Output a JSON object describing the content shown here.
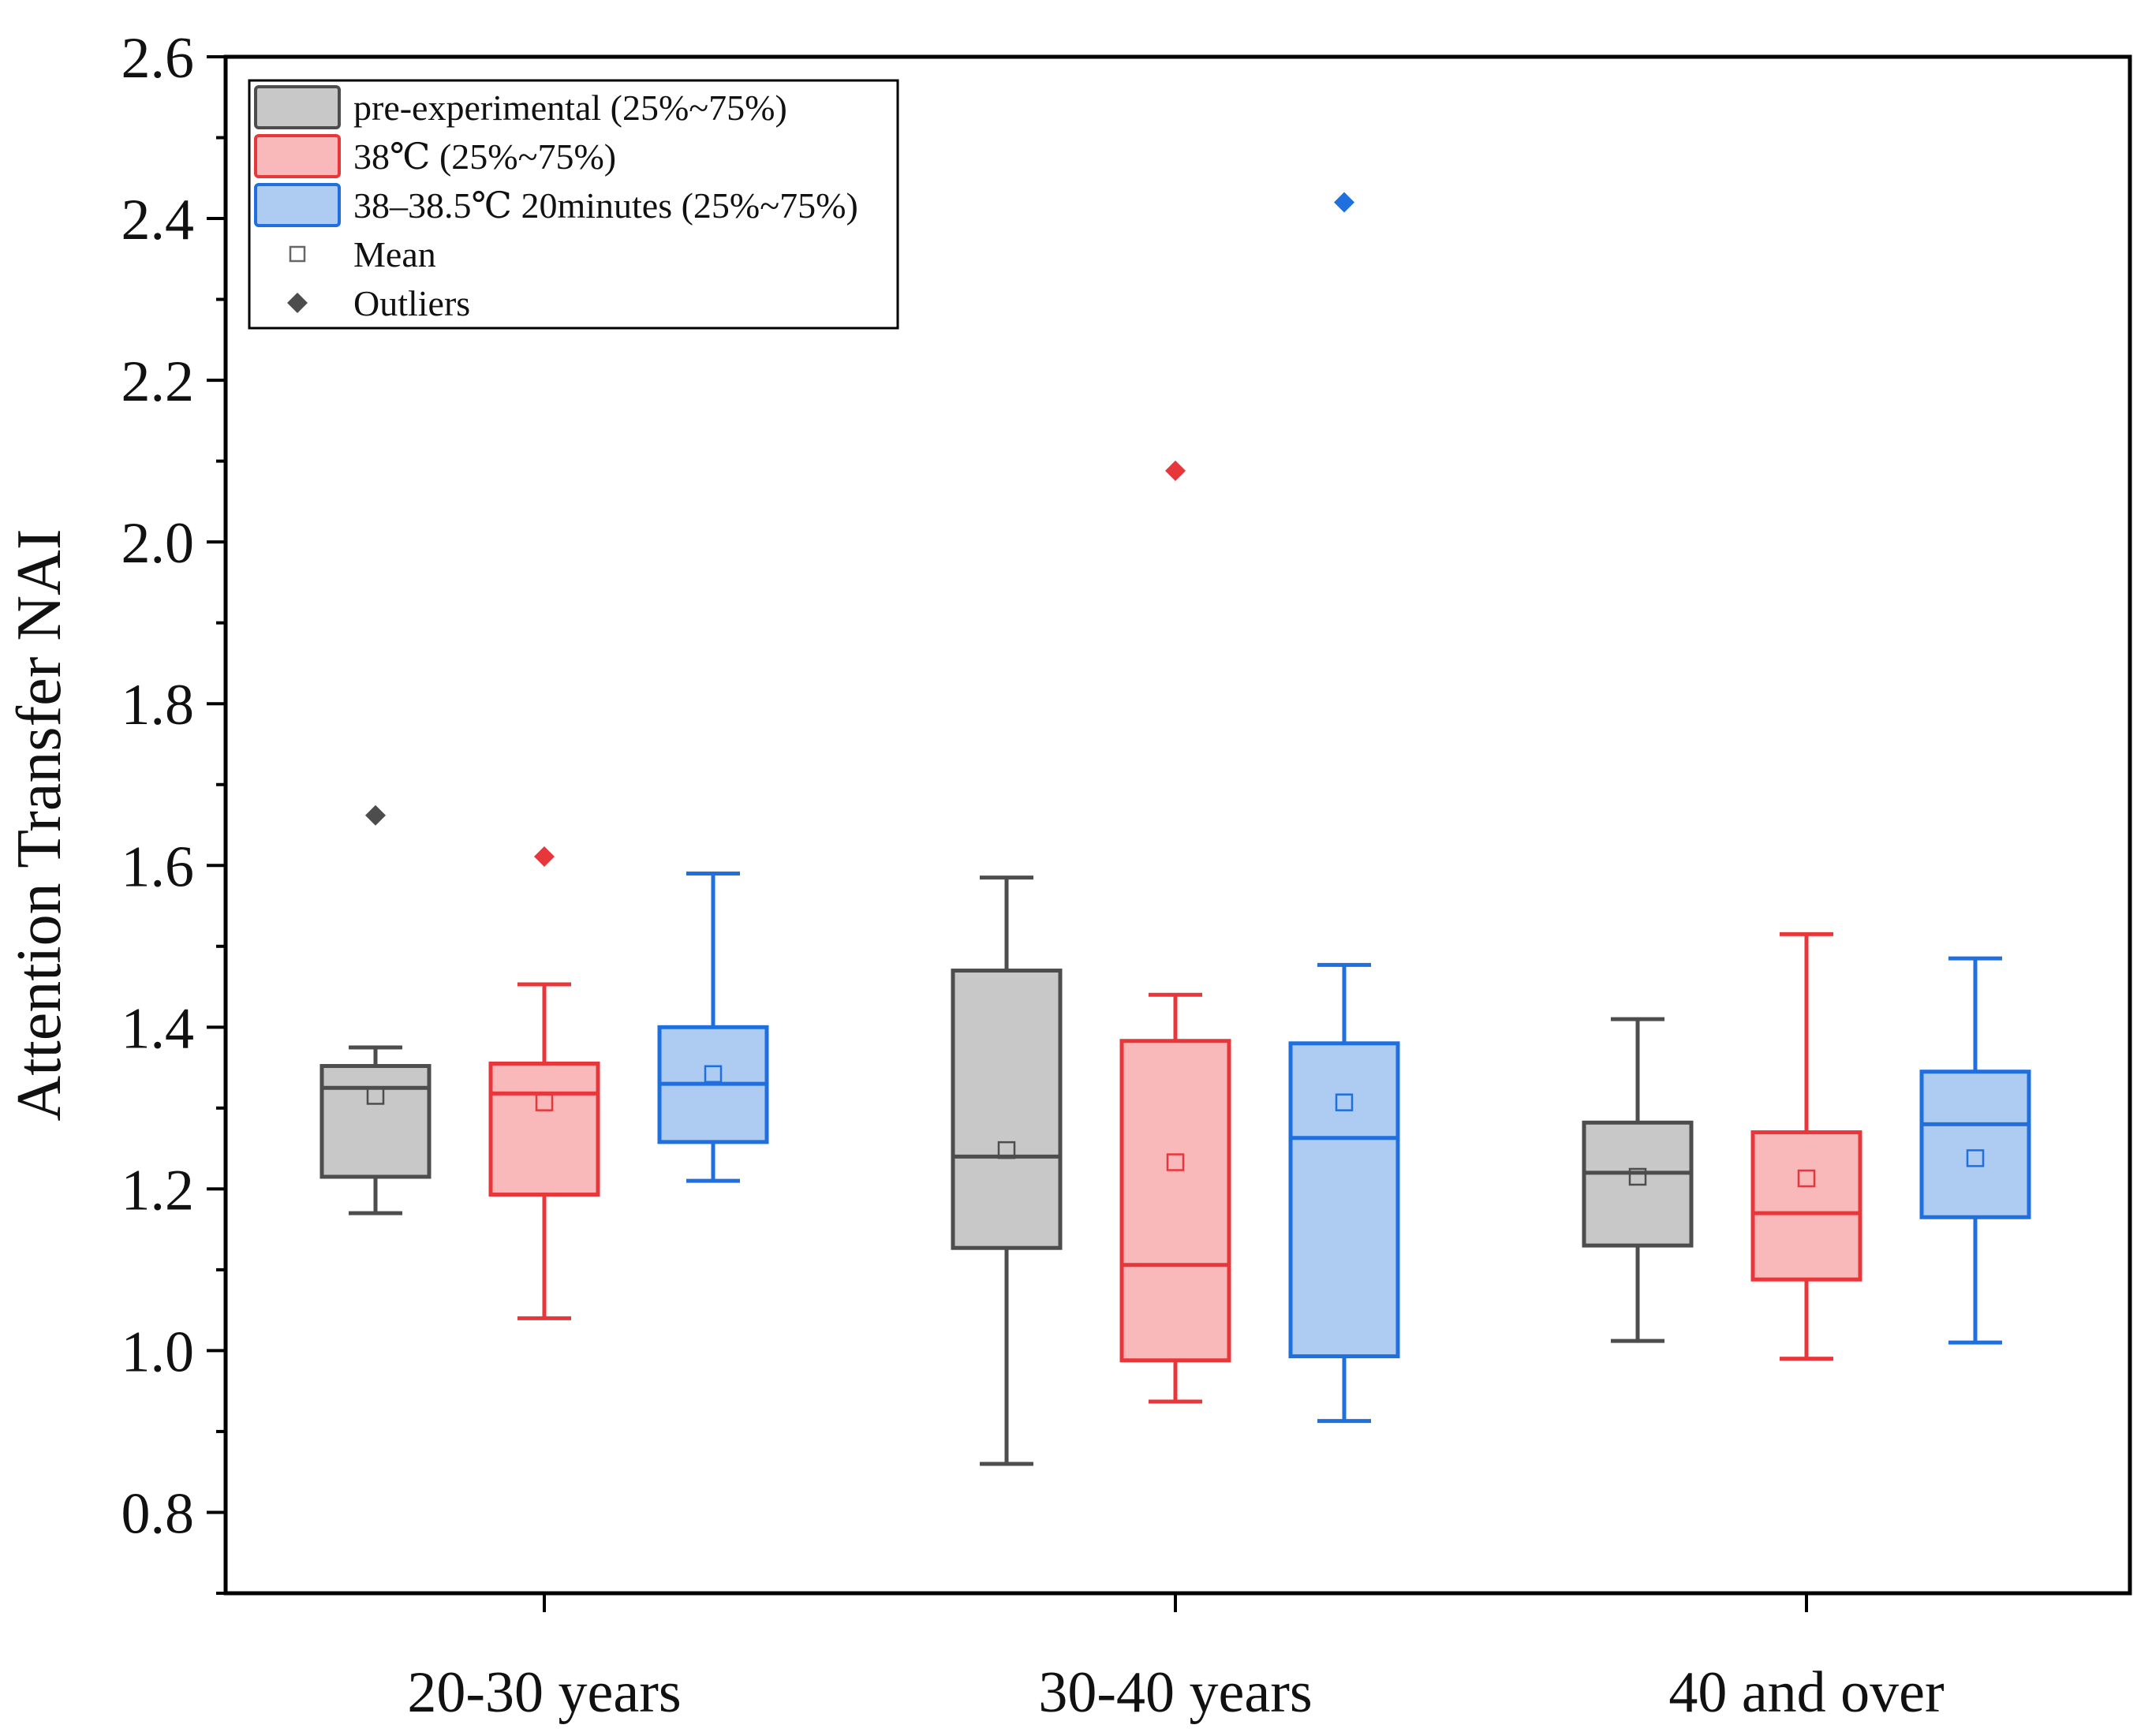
{
  "chart_data": {
    "type": "box",
    "ylabel": "Attention Transfer NAI",
    "xlabel": "",
    "ylim": [
      0.7,
      2.6
    ],
    "yticks": [
      "0.8",
      "1.0",
      "1.2",
      "1.4",
      "1.6",
      "1.8",
      "2.0",
      "2.2",
      "2.4",
      "2.6"
    ],
    "ytick_values": [
      0.8,
      1.0,
      1.2,
      1.4,
      1.6,
      1.8,
      2.0,
      2.2,
      2.4,
      2.6
    ],
    "categories": [
      "20-30 years",
      "30-40 years",
      "40 and over"
    ],
    "legend": {
      "position": "top-left",
      "items": [
        {
          "label": "pre-experimental (25%~75%)",
          "kind": "box",
          "series": 0
        },
        {
          "label": "38℃ (25%~75%)",
          "kind": "box",
          "series": 1
        },
        {
          "label": "38–38.5℃ 20minutes (25%~75%)",
          "kind": "box",
          "series": 2
        },
        {
          "label": "Mean",
          "kind": "mean"
        },
        {
          "label": "Outliers",
          "kind": "outlier"
        }
      ]
    },
    "series": [
      {
        "name": "pre-experimental",
        "stroke": "#4d4d4d",
        "fill": "#c8c8c8",
        "boxes": [
          {
            "whisker_low": 1.17,
            "q1": 1.215,
            "median": 1.325,
            "q3": 1.352,
            "whisker_high": 1.375,
            "mean": 1.315,
            "outliers": [
              1.662
            ]
          },
          {
            "whisker_low": 0.86,
            "q1": 1.127,
            "median": 1.24,
            "q3": 1.47,
            "whisker_high": 1.585,
            "mean": 1.248,
            "outliers": []
          },
          {
            "whisker_low": 1.012,
            "q1": 1.13,
            "median": 1.22,
            "q3": 1.282,
            "whisker_high": 1.41,
            "mean": 1.215,
            "outliers": []
          }
        ]
      },
      {
        "name": "38℃",
        "stroke": "#e8373b",
        "fill": "#f9b8b9",
        "boxes": [
          {
            "whisker_low": 1.04,
            "q1": 1.193,
            "median": 1.318,
            "q3": 1.355,
            "whisker_high": 1.453,
            "mean": 1.307,
            "outliers": [
              1.611
            ]
          },
          {
            "whisker_low": 0.937,
            "q1": 0.988,
            "median": 1.106,
            "q3": 1.383,
            "whisker_high": 1.44,
            "mean": 1.233,
            "outliers": [
              2.088
            ]
          },
          {
            "whisker_low": 0.99,
            "q1": 1.088,
            "median": 1.17,
            "q3": 1.27,
            "whisker_high": 1.515,
            "mean": 1.213,
            "outliers": []
          }
        ]
      },
      {
        "name": "38–38.5℃ 20minutes",
        "stroke": "#1f6fde",
        "fill": "#aecbf2",
        "boxes": [
          {
            "whisker_low": 1.21,
            "q1": 1.258,
            "median": 1.33,
            "q3": 1.4,
            "whisker_high": 1.59,
            "mean": 1.342,
            "outliers": []
          },
          {
            "whisker_low": 0.913,
            "q1": 0.993,
            "median": 1.263,
            "q3": 1.38,
            "whisker_high": 1.477,
            "mean": 1.307,
            "outliers": [
              2.42
            ]
          },
          {
            "whisker_low": 1.01,
            "q1": 1.165,
            "median": 1.28,
            "q3": 1.345,
            "whisker_high": 1.485,
            "mean": 1.238,
            "outliers": []
          }
        ]
      }
    ],
    "grid": false
  }
}
